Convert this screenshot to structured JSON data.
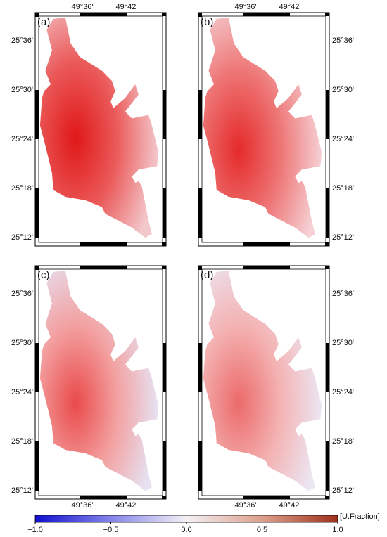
{
  "panels": [
    {
      "label": "(a)"
    },
    {
      "label": "(b)"
    },
    {
      "label": "(c)"
    },
    {
      "label": "(d)"
    }
  ],
  "lon_labels": [
    "49°36'",
    "49°42'"
  ],
  "lat_labels": [
    "25°36'",
    "25°30'",
    "25°24'",
    "25°18'",
    "25°12'"
  ],
  "colorbar": {
    "ticks": [
      {
        "value": -1,
        "label": "−1.0"
      },
      {
        "value": -0.5,
        "label": "−0.5"
      },
      {
        "value": 0,
        "label": "0.0"
      },
      {
        "value": 0.5,
        "label": "0.5"
      },
      {
        "value": 1,
        "label": "1.0"
      }
    ],
    "unit": "[U.Fraction]"
  }
}
